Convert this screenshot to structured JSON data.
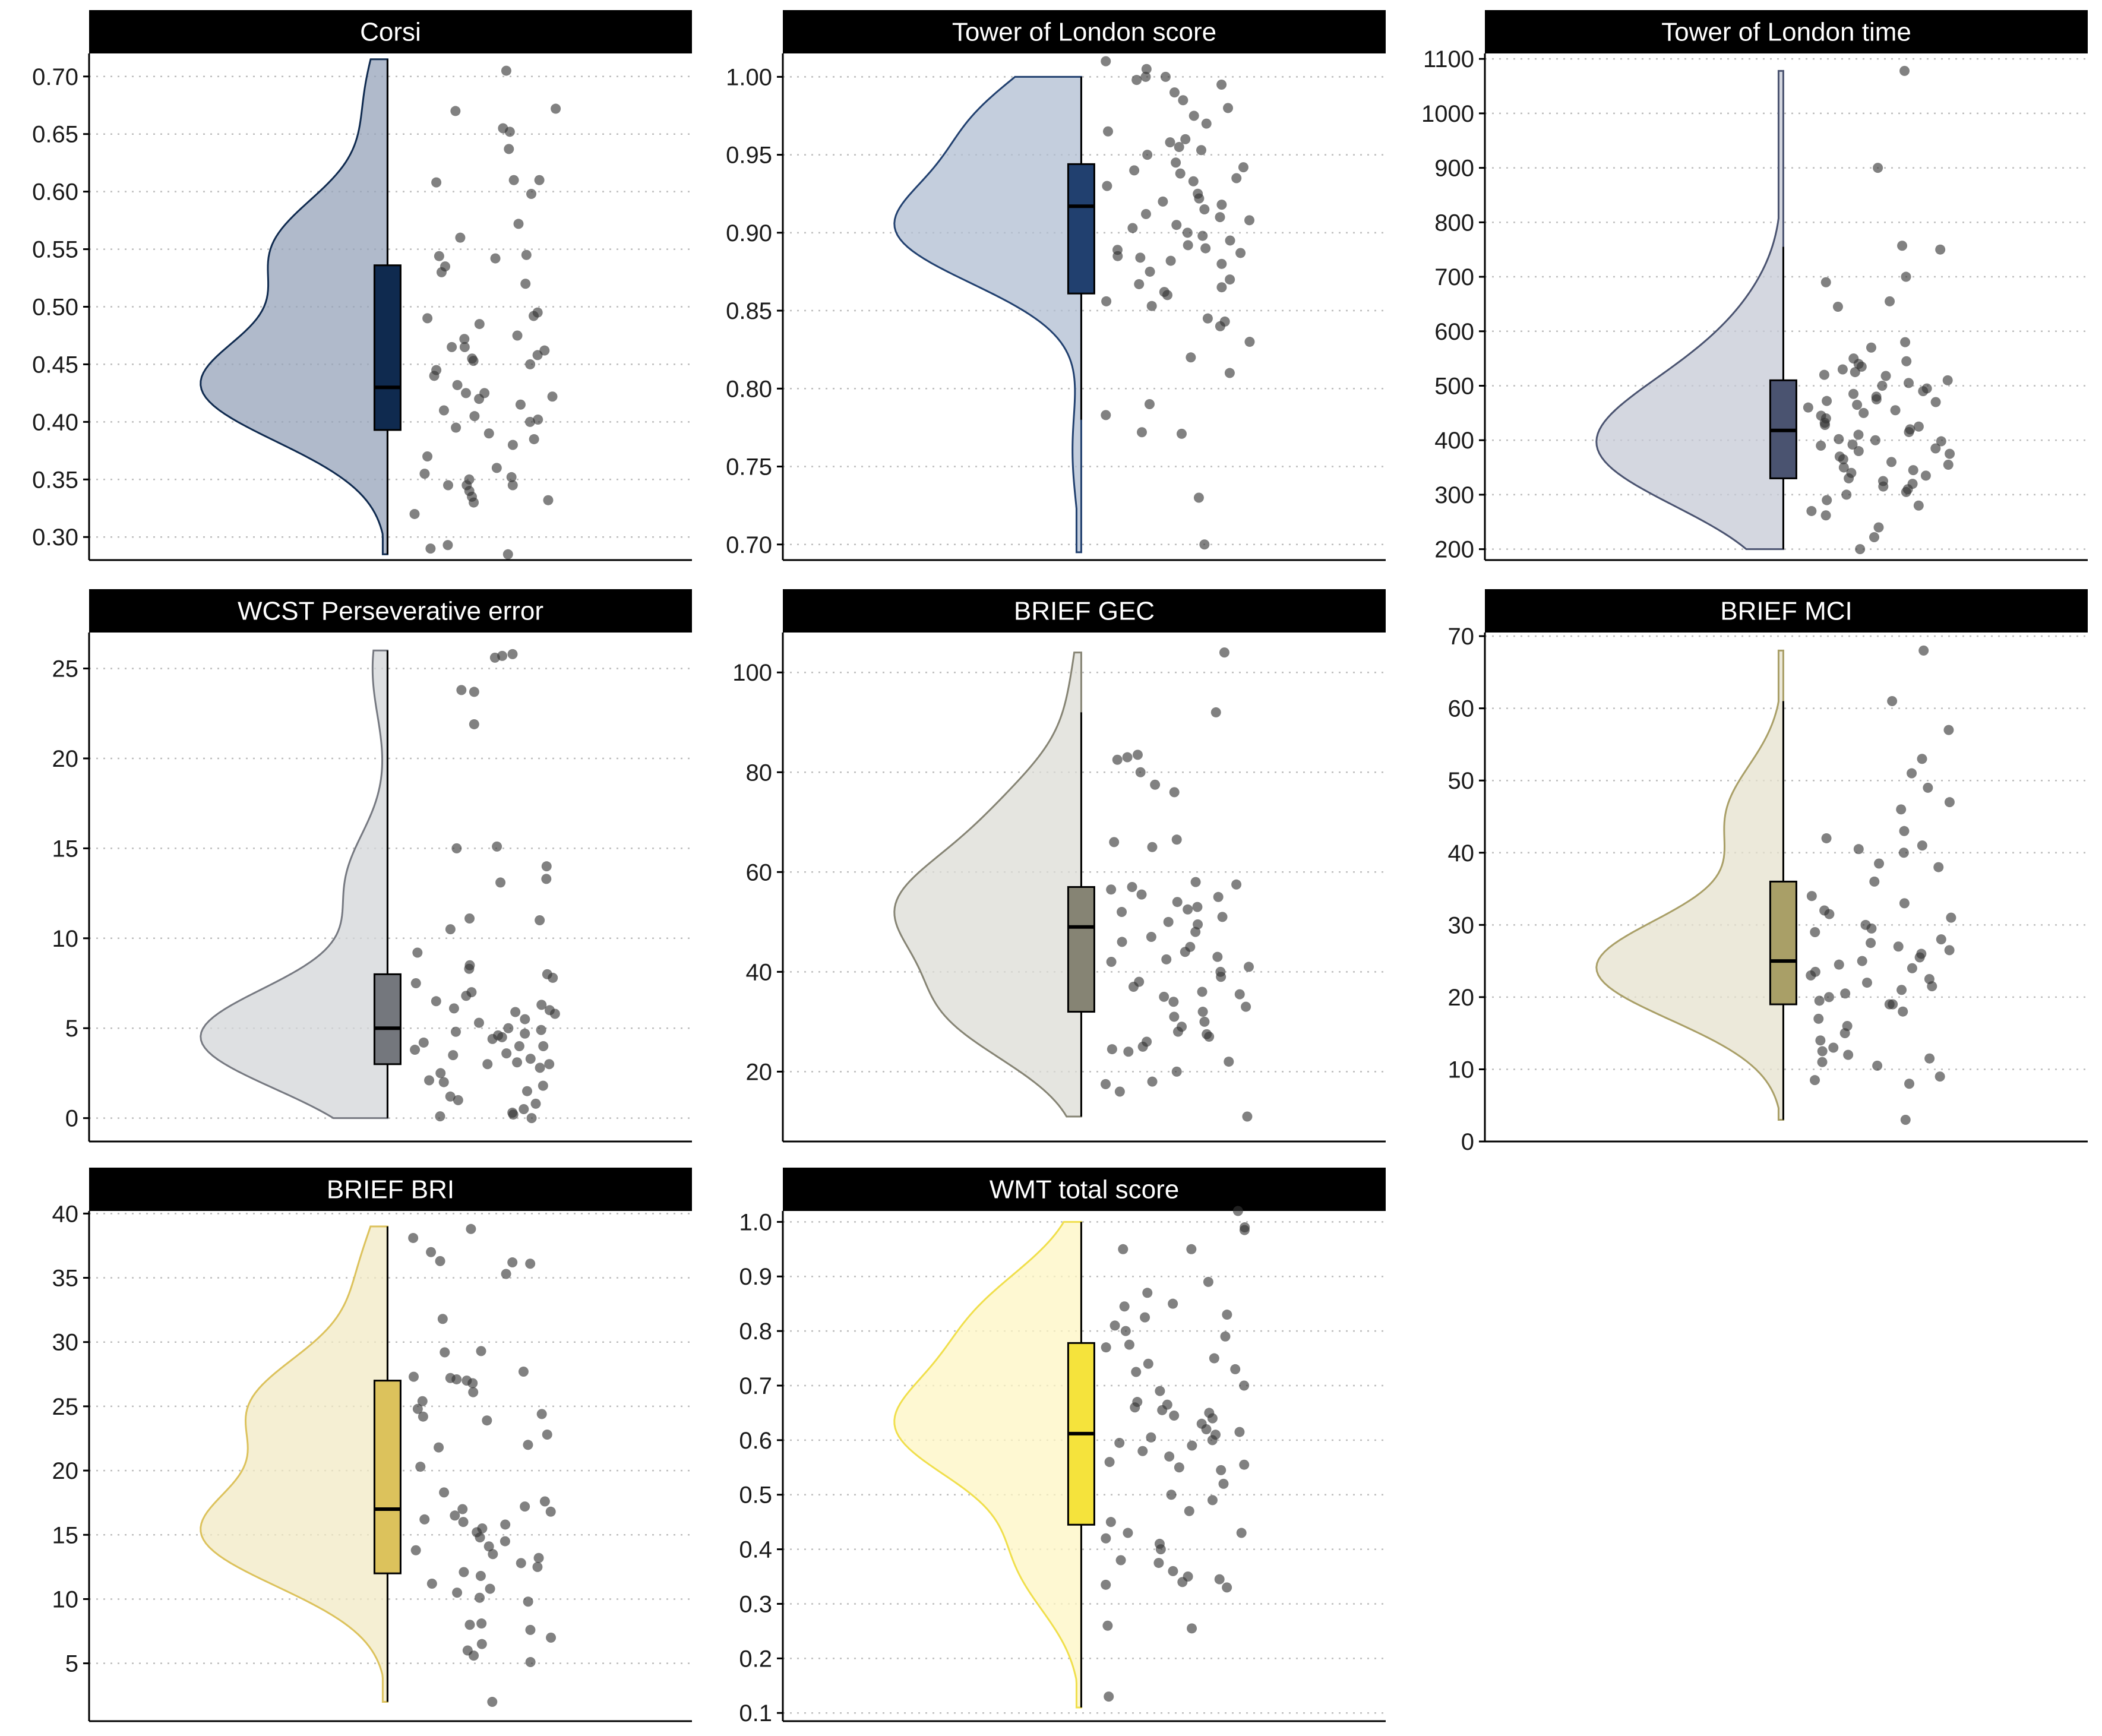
{
  "chart_data": [
    {
      "type": "raincloud",
      "title": "Corsi",
      "ylim": [
        0.28,
        0.72
      ],
      "yticks": [
        "0.30",
        "0.35",
        "0.40",
        "0.45",
        "0.50",
        "0.55",
        "0.60",
        "0.65",
        "0.70"
      ],
      "yticks_values": [
        0.3,
        0.35,
        0.4,
        0.45,
        0.5,
        0.55,
        0.6,
        0.65,
        0.7
      ],
      "range": [
        0.285,
        0.715
      ],
      "median": 0.43,
      "q1": 0.393,
      "q3": 0.536,
      "whisker_low": 0.285,
      "whisker_high": 0.715,
      "fill": "#95a3b9",
      "line": "#0f2a4f",
      "box_fill": "#0f2a4f",
      "density_modes": [
        [
          0.43,
          1.0
        ],
        [
          0.55,
          0.6
        ],
        [
          0.68,
          0.12
        ]
      ],
      "points": [
        0.705,
        0.67,
        0.655,
        0.672,
        0.652,
        0.637,
        0.608,
        0.61,
        0.61,
        0.598,
        0.572,
        0.56,
        0.545,
        0.544,
        0.542,
        0.535,
        0.53,
        0.52,
        0.495,
        0.492,
        0.49,
        0.485,
        0.475,
        0.472,
        0.465,
        0.465,
        0.462,
        0.458,
        0.455,
        0.453,
        0.45,
        0.445,
        0.44,
        0.432,
        0.425,
        0.425,
        0.422,
        0.42,
        0.415,
        0.41,
        0.405,
        0.402,
        0.4,
        0.395,
        0.39,
        0.385,
        0.38,
        0.37,
        0.36,
        0.355,
        0.352,
        0.35,
        0.345,
        0.345,
        0.345,
        0.34,
        0.335,
        0.332,
        0.33,
        0.32,
        0.293,
        0.29,
        0.285
      ]
    },
    {
      "type": "raincloud",
      "title": "Tower of London score",
      "ylim": [
        0.69,
        1.015
      ],
      "yticks": [
        "0.70",
        "0.75",
        "0.80",
        "0.85",
        "0.90",
        "0.95",
        "1.00"
      ],
      "yticks_values": [
        0.7,
        0.75,
        0.8,
        0.85,
        0.9,
        0.95,
        1.0
      ],
      "range": [
        0.695,
        1.0
      ],
      "median": 0.917,
      "q1": 0.861,
      "q3": 0.944,
      "whisker_low": 0.78,
      "whisker_high": 1.0,
      "fill": "#b0bdd1",
      "line": "#21406f",
      "box_fill": "#21406f",
      "density_modes": [
        [
          0.9,
          1.0
        ],
        [
          0.97,
          0.55
        ],
        [
          0.76,
          0.05
        ]
      ],
      "points": [
        1.01,
        1.005,
        1.0,
        1.0,
        0.998,
        0.995,
        0.99,
        0.985,
        0.98,
        0.975,
        0.97,
        0.965,
        0.96,
        0.958,
        0.955,
        0.953,
        0.95,
        0.945,
        0.942,
        0.94,
        0.938,
        0.935,
        0.933,
        0.93,
        0.925,
        0.922,
        0.92,
        0.918,
        0.915,
        0.912,
        0.91,
        0.908,
        0.905,
        0.903,
        0.9,
        0.898,
        0.895,
        0.892,
        0.89,
        0.889,
        0.887,
        0.885,
        0.884,
        0.882,
        0.88,
        0.875,
        0.87,
        0.867,
        0.865,
        0.862,
        0.86,
        0.856,
        0.853,
        0.845,
        0.843,
        0.84,
        0.83,
        0.82,
        0.81,
        0.79,
        0.783,
        0.772,
        0.771,
        0.73,
        0.7
      ]
    },
    {
      "type": "raincloud",
      "title": "Tower of London time",
      "ylim": [
        180,
        1110
      ],
      "yticks": [
        "200",
        "300",
        "400",
        "500",
        "600",
        "700",
        "800",
        "900",
        "1000",
        "1100"
      ],
      "yticks_values": [
        200,
        300,
        400,
        500,
        600,
        700,
        800,
        900,
        1000,
        1100
      ],
      "range": [
        200,
        1078
      ],
      "median": 418,
      "q1": 330,
      "q3": 510,
      "whisker_low": 200,
      "whisker_high": 755,
      "fill": "#c6cad6",
      "line": "#4a5370",
      "box_fill": "#4a5370",
      "density_modes": [
        [
          360,
          1.0
        ],
        [
          480,
          0.55
        ],
        [
          620,
          0.18
        ],
        [
          1000,
          0.03
        ]
      ],
      "points": [
        1078,
        900,
        757,
        750,
        700,
        690,
        655,
        645,
        580,
        570,
        550,
        545,
        540,
        535,
        530,
        525,
        520,
        518,
        510,
        505,
        500,
        495,
        490,
        485,
        480,
        475,
        472,
        470,
        465,
        460,
        455,
        450,
        445,
        440,
        432,
        428,
        425,
        420,
        415,
        410,
        402,
        400,
        398,
        392,
        390,
        385,
        380,
        375,
        370,
        365,
        360,
        355,
        350,
        345,
        340,
        335,
        330,
        325,
        320,
        315,
        310,
        305,
        300,
        290,
        280,
        270,
        262,
        240,
        222,
        200
      ]
    },
    {
      "type": "raincloud",
      "title": "WCST Perseverative error",
      "ylim": [
        -1.3,
        27
      ],
      "yticks": [
        "0",
        "5",
        "10",
        "15",
        "20",
        "25"
      ],
      "yticks_values": [
        0,
        5,
        10,
        15,
        20,
        25
      ],
      "range": [
        0,
        26
      ],
      "median": 5,
      "q1": 3,
      "q3": 8,
      "whisker_low": 0,
      "whisker_high": 26,
      "fill": "#d3d5d8",
      "line": "#767981",
      "box_fill": "#74777d",
      "density_modes": [
        [
          4.5,
          1.0
        ],
        [
          13,
          0.22
        ],
        [
          25,
          0.08
        ]
      ],
      "points": [
        25.8,
        25.7,
        25.6,
        23.8,
        23.7,
        21.9,
        15.1,
        15,
        14,
        13.3,
        13.1,
        11.1,
        11,
        10.5,
        9.2,
        8.5,
        8.3,
        8,
        7.8,
        7.5,
        7,
        6.8,
        6.5,
        6.3,
        6.1,
        6,
        5.9,
        5.8,
        5.5,
        5.3,
        5,
        4.9,
        4.8,
        4.7,
        4.6,
        4.5,
        4.4,
        4.2,
        4,
        4,
        3.8,
        3.6,
        3.5,
        3.3,
        3.1,
        3,
        3,
        2.8,
        2.5,
        2.1,
        2,
        1.8,
        1.5,
        1.2,
        1,
        0.8,
        0.5,
        0.3,
        0.2,
        0.1,
        0
      ]
    },
    {
      "type": "raincloud",
      "title": "BRIEF GEC",
      "ylim": [
        6,
        108
      ],
      "yticks": [
        "20",
        "40",
        "60",
        "80",
        "100"
      ],
      "yticks_values": [
        20,
        40,
        60,
        80,
        100
      ],
      "range": [
        11,
        104
      ],
      "median": 49,
      "q1": 32,
      "q3": 57,
      "whisker_low": 11,
      "whisker_high": 92,
      "fill": "#dcdcd6",
      "line": "#868474",
      "box_fill": "#868474",
      "density_modes": [
        [
          53,
          1.0
        ],
        [
          32,
          0.75
        ],
        [
          72,
          0.4
        ],
        [
          95,
          0.06
        ]
      ],
      "points": [
        104,
        92,
        83.5,
        83,
        82.5,
        80,
        77.5,
        76,
        66.5,
        66,
        65,
        58,
        57.5,
        57,
        56.5,
        55.5,
        55,
        54,
        53,
        52.5,
        52,
        51,
        50,
        49.5,
        48,
        47,
        46,
        45,
        44,
        43,
        42.5,
        42,
        41,
        40,
        39,
        38,
        37,
        36,
        35.5,
        35,
        34,
        33,
        32,
        31,
        30,
        29,
        28,
        27.5,
        27,
        26,
        25,
        24.5,
        24,
        22,
        20,
        18,
        17.5,
        16,
        11
      ]
    },
    {
      "type": "raincloud",
      "title": "BRIEF MCI",
      "ylim": [
        0,
        70.5
      ],
      "yticks": [
        "0",
        "10",
        "20",
        "30",
        "40",
        "50",
        "60",
        "70"
      ],
      "yticks_values": [
        0,
        10,
        20,
        30,
        40,
        50,
        60,
        70
      ],
      "range": [
        3,
        68
      ],
      "median": 25,
      "q1": 19,
      "q3": 36,
      "whisker_low": 3,
      "whisker_high": 61,
      "fill": "#e6e2ce",
      "line": "#a99f67",
      "box_fill": "#a99f67",
      "density_modes": [
        [
          24,
          1.0
        ],
        [
          45,
          0.3
        ]
      ],
      "points": [
        68,
        61,
        57,
        53,
        51,
        49,
        47,
        46,
        43,
        42,
        41,
        40.5,
        40,
        38.5,
        38,
        36,
        34,
        33,
        32,
        31.5,
        31,
        30,
        29.5,
        29,
        28,
        27.5,
        27,
        26.5,
        26,
        25.5,
        25,
        24.5,
        24,
        23.5,
        23,
        22.5,
        22,
        21.5,
        21,
        20.5,
        20,
        19.5,
        19,
        19,
        18,
        17,
        16,
        15,
        14,
        13,
        12.5,
        12,
        11.5,
        11,
        10.5,
        9,
        8.5,
        8,
        3
      ]
    },
    {
      "type": "raincloud",
      "title": "BRIEF BRI",
      "ylim": [
        0.5,
        40.2
      ],
      "yticks": [
        "5",
        "10",
        "15",
        "20",
        "25",
        "30",
        "35",
        "40"
      ],
      "yticks_values": [
        5,
        10,
        15,
        20,
        25,
        30,
        35,
        40
      ],
      "range": [
        2,
        39
      ],
      "median": 17,
      "q1": 12,
      "q3": 27,
      "whisker_low": 2,
      "whisker_high": 39,
      "fill": "#f2e9c4",
      "line": "#dcc25c",
      "box_fill": "#dcc25c",
      "density_modes": [
        [
          15,
          1.0
        ],
        [
          25,
          0.72
        ],
        [
          35,
          0.15
        ]
      ],
      "points": [
        38.8,
        38.1,
        37,
        36.3,
        36.2,
        36.1,
        35.3,
        31.8,
        29.3,
        29.2,
        27.7,
        27.3,
        27.2,
        27.1,
        27,
        26.8,
        26.1,
        25.4,
        24.8,
        24.4,
        24.2,
        23.9,
        22.8,
        22,
        21.8,
        20.3,
        18.3,
        17.6,
        17.2,
        17,
        16.8,
        16.5,
        16.2,
        16,
        15.8,
        15.5,
        15.2,
        14.8,
        14.5,
        14.1,
        13.8,
        13.5,
        13.2,
        12.8,
        12.5,
        12.1,
        11.8,
        11.2,
        10.8,
        10.5,
        10.1,
        9.8,
        8.1,
        8,
        7.6,
        7,
        6.5,
        6,
        5.6,
        5.1,
        2
      ]
    },
    {
      "type": "raincloud",
      "title": "WMT total score",
      "ylim": [
        0.085,
        1.02
      ],
      "yticks": [
        "0.1",
        "0.2",
        "0.3",
        "0.4",
        "0.5",
        "0.6",
        "0.7",
        "0.8",
        "0.9",
        "1.0"
      ],
      "yticks_values": [
        0.1,
        0.2,
        0.3,
        0.4,
        0.5,
        0.6,
        0.7,
        0.8,
        0.9,
        1.0
      ],
      "range": [
        0.11,
        1.0
      ],
      "median": 0.612,
      "q1": 0.445,
      "q3": 0.778,
      "whisker_low": 0.11,
      "whisker_high": 1.0,
      "fill": "#fdf6c3",
      "line": "#f0df4c",
      "box_fill": "#f5e33c",
      "density_modes": [
        [
          0.62,
          1.0
        ],
        [
          0.82,
          0.55
        ],
        [
          0.38,
          0.35
        ]
      ],
      "points": [
        1.02,
        0.99,
        0.985,
        0.95,
        0.95,
        0.89,
        0.87,
        0.85,
        0.845,
        0.83,
        0.825,
        0.81,
        0.8,
        0.79,
        0.775,
        0.77,
        0.75,
        0.74,
        0.73,
        0.725,
        0.7,
        0.69,
        0.67,
        0.665,
        0.66,
        0.655,
        0.65,
        0.645,
        0.64,
        0.63,
        0.62,
        0.615,
        0.61,
        0.605,
        0.6,
        0.595,
        0.59,
        0.58,
        0.57,
        0.56,
        0.555,
        0.55,
        0.545,
        0.52,
        0.5,
        0.49,
        0.47,
        0.45,
        0.43,
        0.43,
        0.42,
        0.41,
        0.4,
        0.38,
        0.375,
        0.36,
        0.35,
        0.345,
        0.34,
        0.335,
        0.33,
        0.26,
        0.255,
        0.13
      ]
    }
  ]
}
